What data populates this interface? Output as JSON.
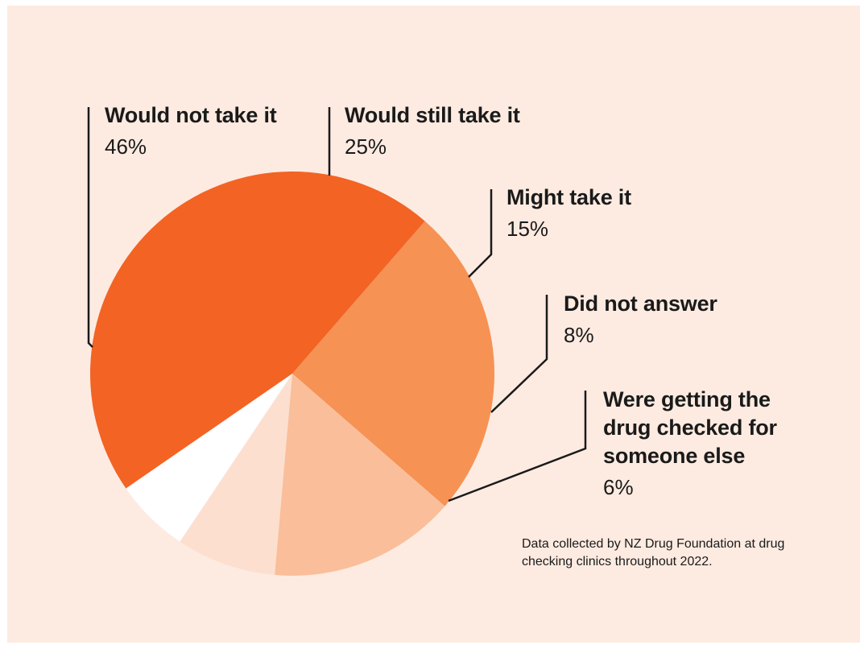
{
  "chart_data": {
    "type": "pie",
    "title": "",
    "slices": [
      {
        "label": "Would not take it",
        "value": 46,
        "value_label": "46%",
        "color": "#f36324"
      },
      {
        "label": "Would still take it",
        "value": 25,
        "value_label": "25%",
        "color": "#f69253"
      },
      {
        "label": "Might take it",
        "value": 15,
        "value_label": "15%",
        "color": "#fabe9b"
      },
      {
        "label": "Did not answer",
        "value": 8,
        "value_label": "8%",
        "color": "#fcdfcf"
      },
      {
        "label": "Were getting the drug checked for someone else",
        "value": 6,
        "value_label": "6%",
        "color": "#ffffff"
      }
    ],
    "footnote": "Data collected by NZ Drug Foundation at drug checking clinics throughout 2022.",
    "legend": "none",
    "background": "#fdebe1"
  }
}
